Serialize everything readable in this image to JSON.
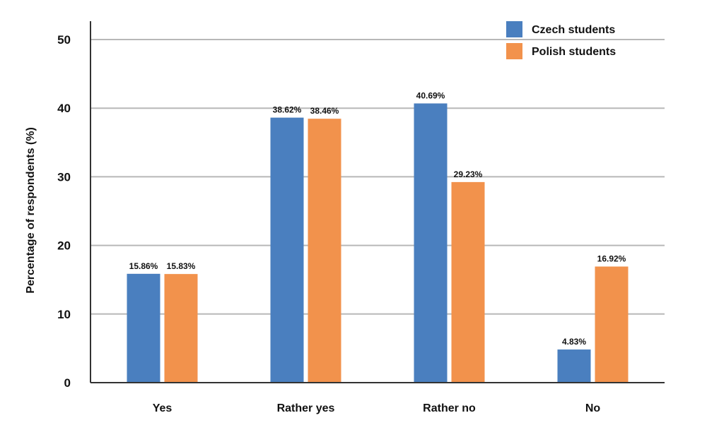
{
  "chart_data": {
    "type": "bar",
    "title": "",
    "xlabel": "",
    "ylabel": "Percentage of respondents (%)",
    "categories": [
      "Yes",
      "Rather yes",
      "Rather no",
      "No"
    ],
    "series": [
      {
        "name": "Czech students",
        "color": "#4a7fbf",
        "values": [
          15.86,
          38.62,
          40.69,
          4.83
        ],
        "labels": [
          "15.86%",
          "38.62%",
          "40.69%",
          "4.83%"
        ]
      },
      {
        "name": "Polish students",
        "color": "#f2924c",
        "values": [
          15.83,
          38.46,
          29.23,
          16.92
        ],
        "labels": [
          "15.83%",
          "38.46%",
          "29.23%",
          "16.92%"
        ]
      }
    ],
    "ylim": [
      0,
      50
    ],
    "yticks": [
      0,
      10,
      20,
      30,
      40,
      50
    ],
    "grid": true,
    "legend_position": "top-right"
  }
}
